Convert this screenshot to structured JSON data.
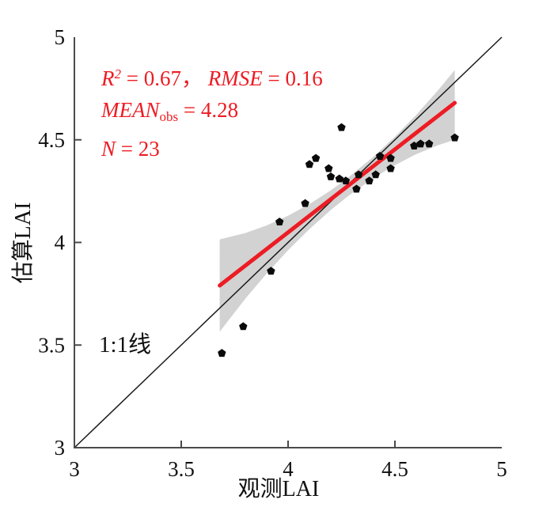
{
  "figure": {
    "background": "#ffffff"
  },
  "chart_data": {
    "type": "scatter",
    "title": "",
    "xlabel": "观测LAI",
    "ylabel": "估算LAI",
    "xlim": [
      3,
      5
    ],
    "ylim": [
      3,
      5
    ],
    "grid": false,
    "legend": "none",
    "xticks": {
      "values": [
        3,
        3.5,
        4,
        4.5,
        5
      ],
      "labels": [
        "3",
        "3.5",
        "4",
        "4.5",
        "5"
      ]
    },
    "yticks": {
      "values": [
        3,
        3.5,
        4,
        4.5,
        5
      ],
      "labels": [
        "3",
        "3.5",
        "4",
        "4.5",
        "5"
      ]
    },
    "axis_color": "#4a4a4a",
    "tick_label_color": "#111111",
    "points": [
      [
        4.25,
        4.56
      ],
      [
        4.13,
        4.41
      ],
      [
        4.1,
        4.38
      ],
      [
        4.19,
        4.36
      ],
      [
        4.2,
        4.32
      ],
      [
        4.24,
        4.31
      ],
      [
        4.27,
        4.3
      ],
      [
        4.33,
        4.33
      ],
      [
        4.32,
        4.26
      ],
      [
        4.38,
        4.3
      ],
      [
        4.41,
        4.33
      ],
      [
        4.43,
        4.42
      ],
      [
        4.48,
        4.41
      ],
      [
        4.48,
        4.36
      ],
      [
        4.59,
        4.47
      ],
      [
        4.62,
        4.48
      ],
      [
        4.66,
        4.48
      ],
      [
        4.78,
        4.51
      ],
      [
        4.08,
        4.19
      ],
      [
        3.96,
        4.1
      ],
      [
        3.92,
        3.86
      ],
      [
        3.79,
        3.59
      ],
      [
        3.69,
        3.46
      ]
    ],
    "marker": {
      "shape": "pentagon",
      "color": "#0a0a0a",
      "radius": 5.5
    },
    "regression_line": {
      "x": [
        3.68,
        4.78
      ],
      "y": [
        3.79,
        4.68
      ],
      "color": "#ed1c24",
      "width": 5
    },
    "identity_line": {
      "x": [
        3,
        5
      ],
      "y": [
        3,
        5
      ],
      "color": "#1a1a1a",
      "width": 1.5,
      "label": "1:1线"
    },
    "confidence_band": {
      "color": "#d2d2d2",
      "x": [
        3.68,
        3.8,
        3.9,
        4.0,
        4.1,
        4.2,
        4.28,
        4.4,
        4.5,
        4.6,
        4.7,
        4.78
      ],
      "upper": [
        4.015,
        4.046,
        4.083,
        4.13,
        4.187,
        4.254,
        4.315,
        4.418,
        4.515,
        4.622,
        4.739,
        4.84
      ],
      "lower": [
        3.565,
        3.726,
        3.849,
        3.962,
        4.065,
        4.158,
        4.225,
        4.314,
        4.377,
        4.43,
        4.473,
        4.5
      ]
    },
    "annotations": {
      "color": "#ed1c24",
      "lines": [
        {
          "segments": [
            {
              "text": "R",
              "style": "italic"
            },
            {
              "text": "2",
              "style": "sup-italic"
            },
            {
              "text": " = 0.67",
              "style": "normal"
            },
            {
              "text": "，",
              "style": "normal"
            },
            {
              "text": " ",
              "style": "normal"
            },
            {
              "text": "RMSE",
              "style": "italic"
            },
            {
              "text": " = 0.16",
              "style": "normal"
            }
          ]
        },
        {
          "segments": [
            {
              "text": "MEAN",
              "style": "italic"
            },
            {
              "text": "obs",
              "style": "sub"
            },
            {
              "text": " = 4.28",
              "style": "normal"
            }
          ]
        },
        {
          "segments": [
            {
              "text": "N",
              "style": "italic"
            },
            {
              "text": " = 23",
              "style": "normal"
            }
          ]
        }
      ]
    }
  }
}
